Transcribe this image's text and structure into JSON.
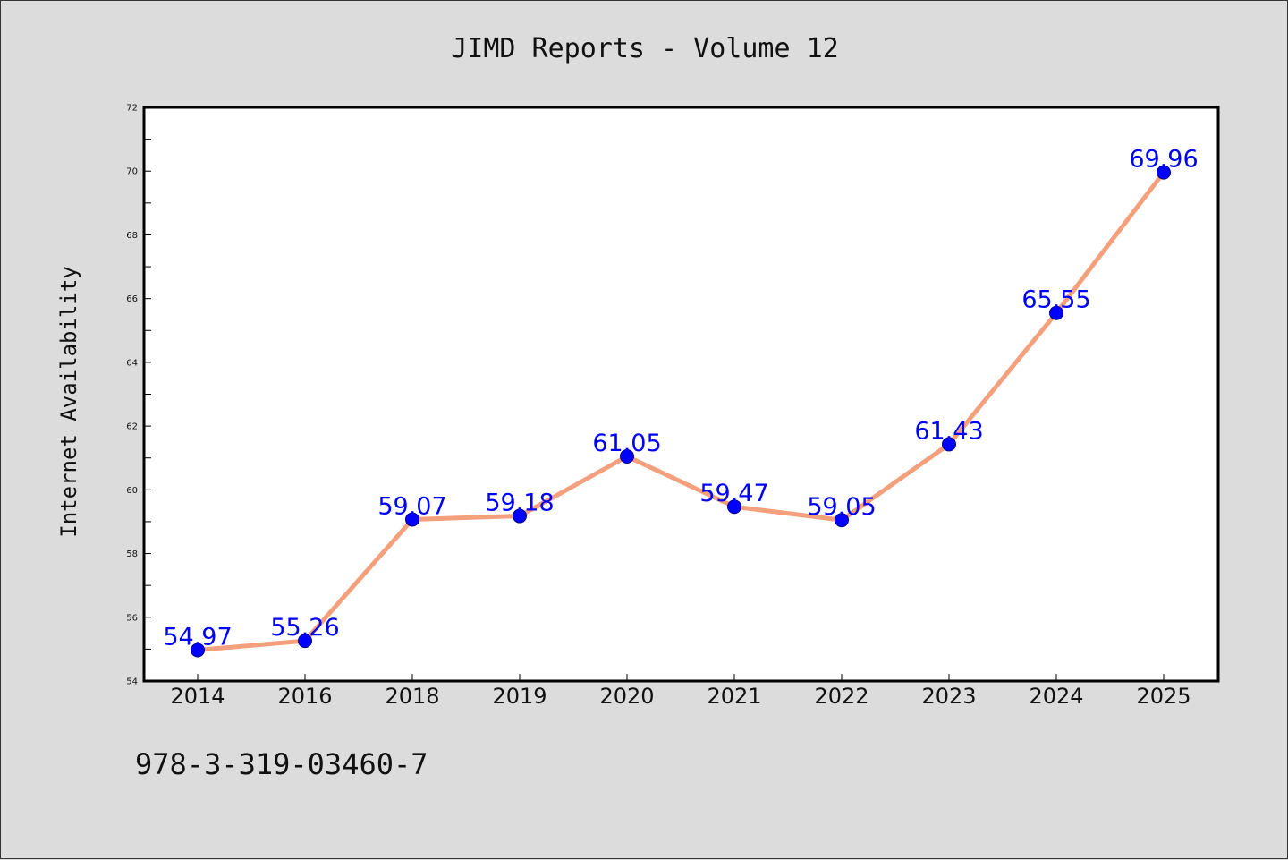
{
  "chart_data": {
    "type": "line",
    "title": "JIMD Reports - Volume 12",
    "xlabel": "",
    "ylabel": "Internet Availability",
    "categories": [
      "2014",
      "2016",
      "2018",
      "2019",
      "2020",
      "2021",
      "2022",
      "2023",
      "2024",
      "2025"
    ],
    "series": [
      {
        "values": [
          54.97,
          55.26,
          59.07,
          59.18,
          61.05,
          59.47,
          59.05,
          61.43,
          65.55,
          69.96
        ]
      }
    ],
    "data_labels": [
      "54.97",
      "55.26",
      "59.07",
      "59.18",
      "61.05",
      "59.47",
      "59.05",
      "61.43",
      "65.55",
      "69.96"
    ],
    "ylim": [
      54,
      72
    ],
    "yticks": [
      54,
      56,
      58,
      60,
      62,
      64,
      66,
      68,
      70,
      72
    ],
    "grid": false,
    "legend": "none",
    "colors": {
      "line": "#f4a07c",
      "marker": "#0000ff",
      "label": "#0000ff",
      "background": "#dcdcdc",
      "plot_background": "#ffffff"
    }
  },
  "footer": {
    "isbn": "978-3-319-03460-7"
  }
}
